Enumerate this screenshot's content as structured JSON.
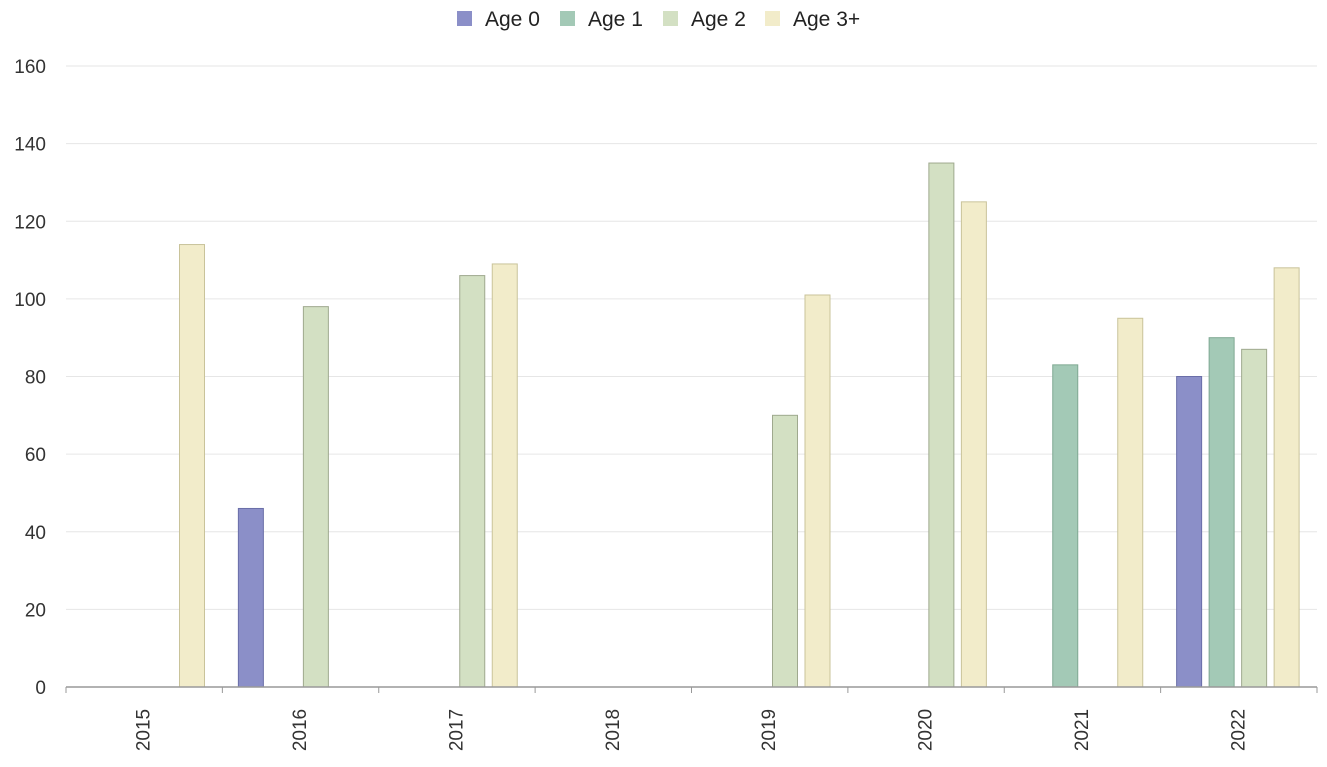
{
  "chart_data": {
    "type": "bar",
    "title": "",
    "xlabel": "",
    "ylabel": "",
    "categories": [
      "2015",
      "2016",
      "2017",
      "2018",
      "2019",
      "2020",
      "2021",
      "2022"
    ],
    "ylim": [
      0,
      160
    ],
    "yticks": [
      0,
      20,
      40,
      60,
      80,
      100,
      120,
      140,
      160
    ],
    "grid": true,
    "legend_position": "top-center",
    "series": [
      {
        "name": "Age 0",
        "color": "#8b8fc8",
        "values": [
          0,
          46,
          0,
          0,
          0,
          0,
          0,
          80
        ]
      },
      {
        "name": "Age 1",
        "color": "#a3c9b6",
        "values": [
          0,
          0,
          0,
          0,
          0,
          0,
          83,
          90
        ]
      },
      {
        "name": "Age 2",
        "color": "#d3e0c3",
        "values": [
          0,
          98,
          106,
          0,
          70,
          135,
          0,
          87
        ]
      },
      {
        "name": "Age 3+",
        "color": "#f2ecca",
        "values": [
          114,
          0,
          109,
          0,
          101,
          125,
          95,
          108
        ]
      }
    ]
  }
}
